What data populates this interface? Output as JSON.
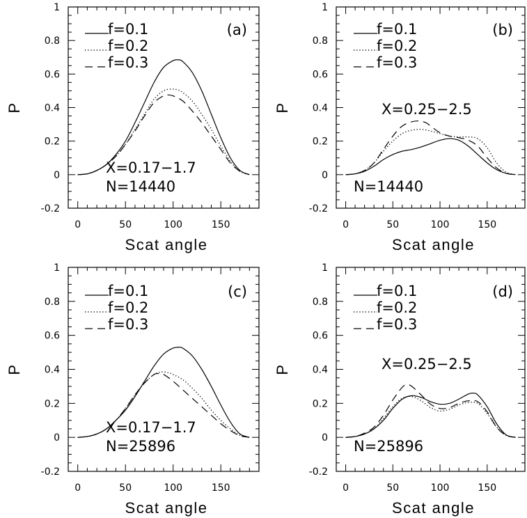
{
  "chart_data": [
    {
      "type": "line",
      "panel_label": "(a)",
      "xlabel": "Scat angle",
      "ylabel": "P",
      "xlim": [
        -10,
        190
      ],
      "ylim": [
        -0.2,
        1.0
      ],
      "xticks": [
        "0",
        "50",
        "100",
        "150"
      ],
      "yticks": [
        "-0.2",
        "0",
        "0.2",
        "0.4",
        "0.6",
        "0.8",
        "1"
      ],
      "annotations": [
        "X=0.17−1.7",
        "N=14440"
      ],
      "series": [
        {
          "name": "f=0.1",
          "style": "solid",
          "x": [
            0,
            10,
            20,
            30,
            40,
            50,
            60,
            70,
            80,
            90,
            100,
            105,
            110,
            120,
            130,
            140,
            150,
            160,
            170,
            180
          ],
          "y": [
            0,
            0.005,
            0.025,
            0.06,
            0.12,
            0.2,
            0.31,
            0.43,
            0.55,
            0.64,
            0.68,
            0.685,
            0.675,
            0.61,
            0.5,
            0.36,
            0.22,
            0.1,
            0.025,
            0
          ]
        },
        {
          "name": "f=0.2",
          "style": "dotted",
          "x": [
            0,
            10,
            20,
            30,
            40,
            50,
            60,
            70,
            80,
            90,
            98,
            105,
            110,
            120,
            130,
            140,
            150,
            160,
            170,
            180
          ],
          "y": [
            0,
            0.005,
            0.025,
            0.06,
            0.11,
            0.18,
            0.27,
            0.36,
            0.45,
            0.5,
            0.51,
            0.505,
            0.49,
            0.44,
            0.36,
            0.27,
            0.17,
            0.08,
            0.02,
            0
          ]
        },
        {
          "name": "f=0.3",
          "style": "dashed",
          "x": [
            0,
            10,
            20,
            30,
            40,
            50,
            60,
            70,
            80,
            90,
            95,
            100,
            110,
            120,
            130,
            140,
            150,
            160,
            170,
            180
          ],
          "y": [
            0,
            0.005,
            0.025,
            0.06,
            0.11,
            0.18,
            0.26,
            0.35,
            0.43,
            0.47,
            0.475,
            0.47,
            0.44,
            0.38,
            0.31,
            0.23,
            0.15,
            0.07,
            0.02,
            0
          ]
        }
      ]
    },
    {
      "type": "line",
      "panel_label": "(b)",
      "xlabel": "Scat angle",
      "ylabel": "P",
      "xlim": [
        -10,
        190
      ],
      "ylim": [
        -0.2,
        1.0
      ],
      "xticks": [
        "0",
        "50",
        "100",
        "150"
      ],
      "yticks": [
        "-0.2",
        "0",
        "0.2",
        "0.4",
        "0.6",
        "0.8",
        "1"
      ],
      "annotations": [
        "X=0.25−2.5",
        "N=14440"
      ],
      "series": [
        {
          "name": "f=0.1",
          "style": "solid",
          "x": [
            0,
            10,
            20,
            30,
            40,
            50,
            60,
            70,
            80,
            90,
            100,
            110,
            120,
            130,
            140,
            150,
            160,
            170,
            180
          ],
          "y": [
            0,
            0.005,
            0.02,
            0.05,
            0.09,
            0.12,
            0.14,
            0.15,
            0.165,
            0.185,
            0.205,
            0.215,
            0.205,
            0.17,
            0.12,
            0.07,
            0.03,
            0.008,
            0
          ]
        },
        {
          "name": "f=0.2",
          "style": "dotted",
          "x": [
            0,
            10,
            20,
            30,
            40,
            50,
            60,
            70,
            80,
            90,
            100,
            110,
            120,
            130,
            140,
            150,
            160,
            170,
            180
          ],
          "y": [
            0,
            0.005,
            0.025,
            0.07,
            0.14,
            0.2,
            0.245,
            0.265,
            0.27,
            0.26,
            0.245,
            0.23,
            0.225,
            0.225,
            0.215,
            0.16,
            0.07,
            0.015,
            0
          ]
        },
        {
          "name": "f=0.3",
          "style": "dashed",
          "x": [
            0,
            10,
            20,
            30,
            40,
            50,
            60,
            70,
            78,
            85,
            90,
            100,
            110,
            120,
            130,
            140,
            150,
            160,
            170,
            180
          ],
          "y": [
            0,
            0.005,
            0.025,
            0.07,
            0.15,
            0.23,
            0.29,
            0.315,
            0.32,
            0.31,
            0.29,
            0.25,
            0.23,
            0.22,
            0.205,
            0.17,
            0.1,
            0.04,
            0.008,
            0
          ]
        }
      ]
    },
    {
      "type": "line",
      "panel_label": "(c)",
      "xlabel": "Scat angle",
      "ylabel": "P",
      "xlim": [
        -10,
        190
      ],
      "ylim": [
        -0.2,
        1.0
      ],
      "xticks": [
        "0",
        "50",
        "100",
        "150"
      ],
      "yticks": [
        "-0.2",
        "0",
        "0.2",
        "0.4",
        "0.6",
        "0.8",
        "1"
      ],
      "annotations": [
        "X=0.17−1.7",
        "N=25896"
      ],
      "series": [
        {
          "name": "f=0.1",
          "style": "solid",
          "x": [
            0,
            10,
            20,
            30,
            40,
            50,
            60,
            70,
            80,
            90,
            100,
            106,
            110,
            120,
            130,
            140,
            150,
            160,
            170,
            180
          ],
          "y": [
            0,
            0.005,
            0.02,
            0.05,
            0.1,
            0.16,
            0.24,
            0.33,
            0.42,
            0.49,
            0.525,
            0.53,
            0.525,
            0.48,
            0.4,
            0.3,
            0.19,
            0.09,
            0.02,
            0
          ]
        },
        {
          "name": "f=0.2",
          "style": "dotted",
          "x": [
            0,
            10,
            20,
            30,
            40,
            50,
            60,
            70,
            80,
            88,
            95,
            100,
            110,
            120,
            130,
            140,
            150,
            160,
            170,
            180
          ],
          "y": [
            0,
            0.005,
            0.02,
            0.05,
            0.1,
            0.17,
            0.25,
            0.32,
            0.37,
            0.385,
            0.38,
            0.37,
            0.34,
            0.29,
            0.23,
            0.16,
            0.1,
            0.05,
            0.012,
            0
          ]
        },
        {
          "name": "f=0.3",
          "style": "dashed",
          "x": [
            0,
            10,
            20,
            30,
            40,
            50,
            60,
            70,
            80,
            85,
            90,
            100,
            110,
            120,
            130,
            140,
            150,
            160,
            170,
            180
          ],
          "y": [
            0,
            0.005,
            0.02,
            0.05,
            0.1,
            0.17,
            0.25,
            0.32,
            0.37,
            0.375,
            0.37,
            0.33,
            0.28,
            0.23,
            0.18,
            0.13,
            0.08,
            0.04,
            0.01,
            0
          ]
        }
      ]
    },
    {
      "type": "line",
      "panel_label": "(d)",
      "xlabel": "Scat angle",
      "ylabel": "P",
      "xlim": [
        -10,
        190
      ],
      "ylim": [
        -0.2,
        1.0
      ],
      "xticks": [
        "0",
        "50",
        "100",
        "150"
      ],
      "yticks": [
        "-0.2",
        "0",
        "0.2",
        "0.4",
        "0.6",
        "0.8",
        "1"
      ],
      "annotations": [
        "X=0.25−2.5",
        "N=25896"
      ],
      "series": [
        {
          "name": "f=0.1",
          "style": "solid",
          "x": [
            0,
            10,
            20,
            30,
            40,
            50,
            60,
            70,
            80,
            90,
            100,
            110,
            120,
            130,
            135,
            140,
            150,
            160,
            170,
            180
          ],
          "y": [
            0,
            0.005,
            0.02,
            0.05,
            0.1,
            0.17,
            0.225,
            0.245,
            0.235,
            0.21,
            0.195,
            0.2,
            0.225,
            0.255,
            0.26,
            0.25,
            0.18,
            0.08,
            0.015,
            0
          ]
        },
        {
          "name": "f=0.2",
          "style": "dotted",
          "x": [
            0,
            10,
            20,
            30,
            40,
            50,
            60,
            70,
            80,
            90,
            100,
            110,
            120,
            130,
            140,
            150,
            160,
            170,
            180
          ],
          "y": [
            0,
            0.005,
            0.02,
            0.05,
            0.11,
            0.18,
            0.23,
            0.24,
            0.215,
            0.175,
            0.155,
            0.165,
            0.19,
            0.205,
            0.2,
            0.14,
            0.06,
            0.012,
            0
          ]
        },
        {
          "name": "f=0.3",
          "style": "dashed",
          "x": [
            0,
            10,
            20,
            30,
            40,
            50,
            60,
            65,
            70,
            80,
            90,
            100,
            110,
            120,
            130,
            140,
            150,
            160,
            170,
            180
          ],
          "y": [
            0,
            0.005,
            0.025,
            0.06,
            0.13,
            0.22,
            0.295,
            0.31,
            0.3,
            0.25,
            0.195,
            0.17,
            0.175,
            0.2,
            0.215,
            0.21,
            0.15,
            0.06,
            0.012,
            0
          ]
        }
      ]
    }
  ]
}
